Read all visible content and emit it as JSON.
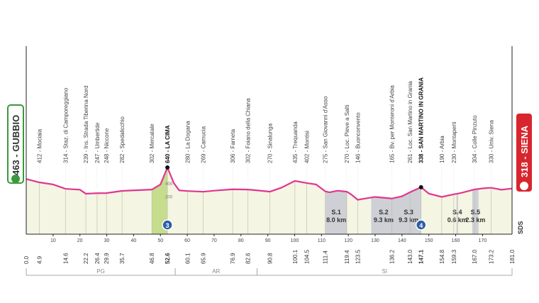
{
  "chart_data": {
    "type": "profile",
    "start": "463 - GUBBIO",
    "finish": "318 - SIENA",
    "badge": "SDS",
    "color": "#e0368f",
    "fill": "#f4f5e2",
    "sector_color": "#cfd0d6",
    "climb_color": "#c5dd8c",
    "x": [
      0,
      4.9,
      10,
      14.6,
      20,
      22.2,
      26.4,
      29.9,
      35.7,
      40,
      46.8,
      50,
      52.6,
      55,
      57,
      60.1,
      65.9,
      70,
      76.9,
      82.6,
      86,
      90.8,
      95,
      100.1,
      104.5,
      108,
      111.4,
      113,
      116,
      119.4,
      121,
      123.5,
      127,
      130,
      136.2,
      140,
      143,
      147.1,
      150,
      154.8,
      159.3,
      162,
      167,
      170,
      173.2,
      177,
      181
    ],
    "values": [
      463,
      412,
      380,
      314,
      300,
      239,
      247,
      248,
      282,
      290,
      302,
      380,
      640,
      400,
      290,
      280,
      269,
      285,
      306,
      302,
      290,
      270,
      330,
      435,
      402,
      380,
      275,
      260,
      285,
      270,
      230,
      146,
      170,
      190,
      165,
      200,
      261,
      338,
      240,
      190,
      230,
      250,
      304,
      320,
      330,
      300,
      318
    ],
    "xlim": [
      0,
      181
    ],
    "ylim": [
      -380,
      640
    ],
    "xticks": [
      10,
      20,
      30,
      40,
      50,
      60,
      70,
      80,
      90,
      100,
      110,
      120,
      130,
      140,
      150,
      160,
      170
    ],
    "yticks": [
      200,
      400
    ],
    "waypoints": [
      {
        "km": {
          "value": 0,
          "label": "0.0"
        }
      },
      {
        "km": 4.9,
        "name": "412 - Mociaia"
      },
      {
        "km": 14.6,
        "name": "314 - Staz. di Camporeggiano"
      },
      {
        "km": 22.2,
        "name": "239 - Ins. Strada Tiberina Nord"
      },
      {
        "km": 26.4,
        "name": "247 - Umbertide"
      },
      {
        "km": 29.9,
        "name": "248 - Niccone"
      },
      {
        "km": 35.7,
        "name": "282 - Spedalicchio"
      },
      {
        "km": 46.8,
        "name": "302 - Mercatale"
      },
      {
        "km": 52.6,
        "name": "640 - LA CIMA",
        "bold": true
      },
      {
        "km": 60.1,
        "name": "280 - La Dogana"
      },
      {
        "km": 65.9,
        "name": "269 - Camucia"
      },
      {
        "km": 76.9,
        "name": "306 - Farneta"
      },
      {
        "km": 82.6,
        "name": "302 - Foiano della Chiana"
      },
      {
        "km": 90.8,
        "name": "270 - Sinalunga"
      },
      {
        "km": 100.1,
        "name": "435 - Trequanda"
      },
      {
        "km": 104.5,
        "name": "402 - Montisi"
      },
      {
        "km": 111.4,
        "name": "275 - San Giovanni d'Asso"
      },
      {
        "km": 119.4,
        "name": "270 - Loc. Pieve a Salti"
      },
      {
        "km": 123.5,
        "name": "146 - Buonconvento"
      },
      {
        "km": 136.2,
        "name": "165 - Bv. per Monteroni d'Arbia"
      },
      {
        "km": {
          "value": 143,
          "label": "143.0"
        },
        "name": "261 - Loc. San Martino in Grania"
      },
      {
        "km": 147.1,
        "name": "338 - SAN MARTINO IN GRANIA",
        "bold": true
      },
      {
        "km": 154.8,
        "name": "190 - Arbia"
      },
      {
        "km": 159.3,
        "name": "230 - Montaperti"
      },
      {
        "km": {
          "value": 167,
          "label": "167.0"
        },
        "name": "304 - Colle Pinzuto"
      },
      {
        "km": 173.2,
        "name": "330 - Univ. Siena"
      },
      {
        "km": {
          "value": 181,
          "label": "181.0"
        }
      }
    ],
    "sectors": [
      {
        "name": "S.1",
        "start": 111.5,
        "length": {
          "value": 8,
          "label": "8.0 km"
        }
      },
      {
        "name": "S.2",
        "start": 128.5,
        "length": {
          "value": 9.3,
          "label": "9.3 km"
        }
      },
      {
        "name": "S.3",
        "start": 137.8,
        "length": {
          "value": 9.3,
          "label": "9.3 km"
        }
      },
      {
        "name": "S.4",
        "start": 160.3,
        "length": {
          "value": 0.6,
          "label": "0.6 km"
        }
      },
      {
        "name": "S.5",
        "start": 166.2,
        "length": {
          "value": 2.3,
          "label": "2.3 km"
        }
      }
    ],
    "climbs": [
      {
        "from": 46.8,
        "km": 52.6,
        "category": 3
      },
      {
        "km": 147.1,
        "category": 4
      }
    ],
    "regions": [
      {
        "name": "PG",
        "from": 0,
        "to": 55.5
      },
      {
        "name": "AR",
        "from": 55.5,
        "to": 86
      },
      {
        "name": "SI",
        "from": 86,
        "to": 181
      }
    ]
  }
}
